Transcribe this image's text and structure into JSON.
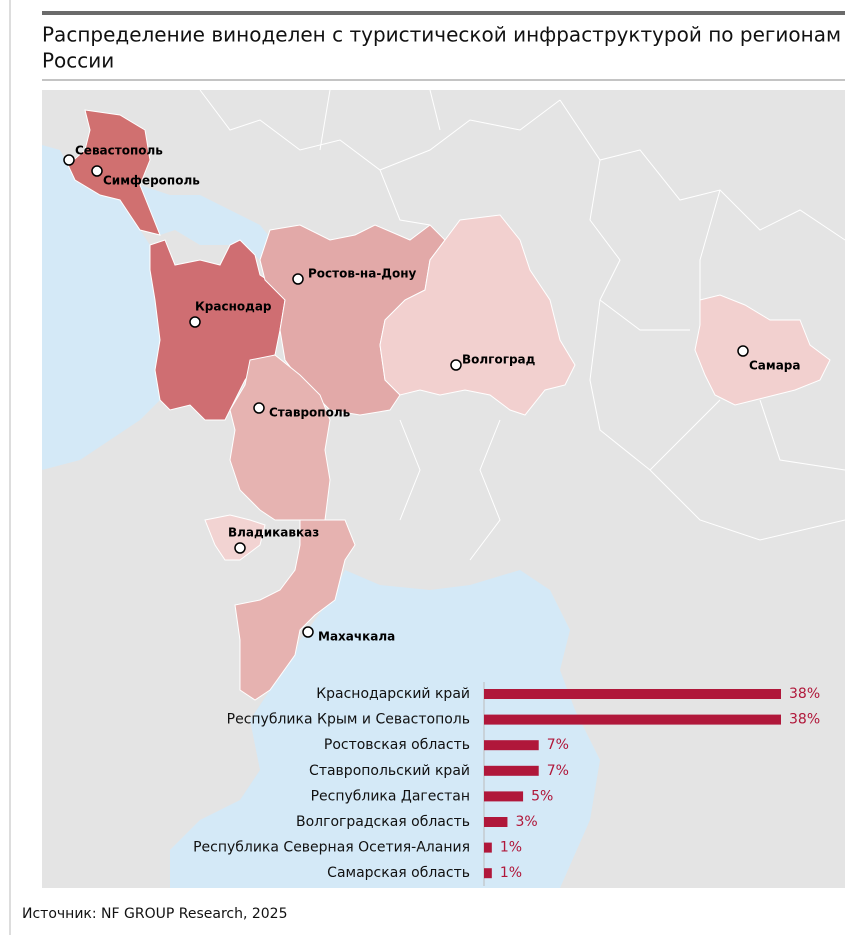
{
  "header": {
    "title_line1": "Распределение виноделен с туристической инфраструктурой по регионам",
    "title_line2": "России"
  },
  "map": {
    "cities": [
      {
        "label": "Севастополь"
      },
      {
        "label": "Симферополь"
      },
      {
        "label": "Ростов-на-Дону"
      },
      {
        "label": "Краснодар"
      },
      {
        "label": "Волгоград"
      },
      {
        "label": "Самара"
      },
      {
        "label": "Ставрополь"
      },
      {
        "label": "Владикавказ"
      },
      {
        "label": "Махачкала"
      }
    ]
  },
  "chart_data": {
    "type": "bar",
    "orientation": "horizontal",
    "categories": [
      "Краснодарский край",
      "Республика Крым и Севастополь",
      "Ростовская область",
      "Ставропольский край",
      "Республика Дагестан",
      "Волгоградская область",
      "Республика Северная Осетия-Алания",
      "Самарская область"
    ],
    "values": [
      38,
      38,
      7,
      7,
      5,
      3,
      1,
      1
    ],
    "value_labels": [
      "38%",
      "38%",
      "7%",
      "7%",
      "5%",
      "3%",
      "1%",
      "1%"
    ],
    "color": "#b0173a"
  },
  "footer": {
    "source": "Источник: NF GROUP Research, 2025"
  }
}
